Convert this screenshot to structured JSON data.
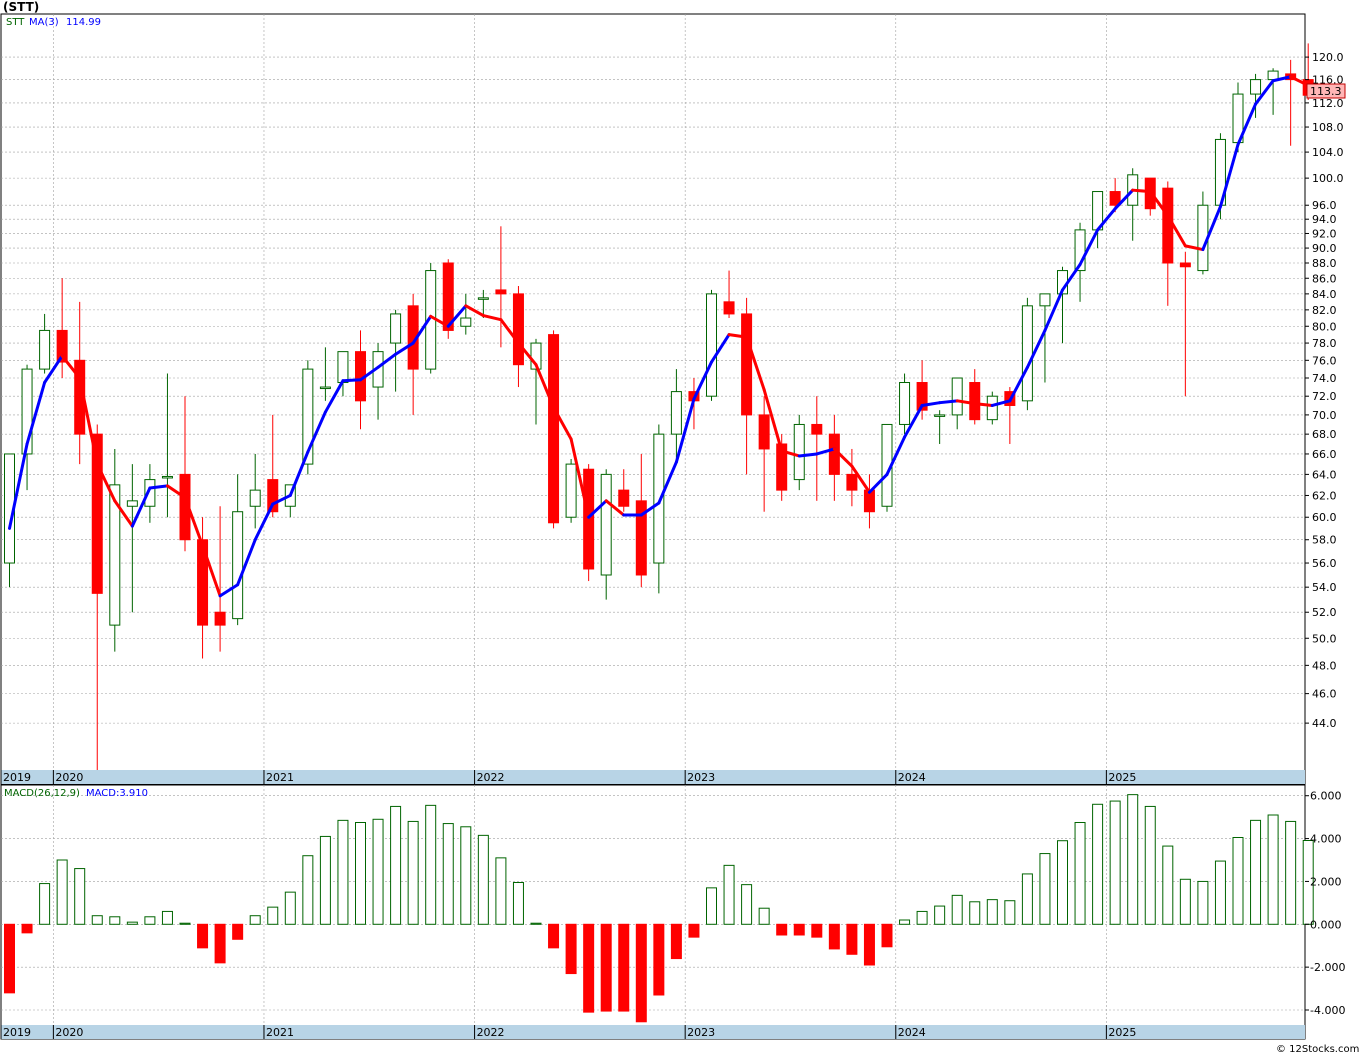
{
  "header": {
    "symbol": "(STT)",
    "price_legend_symbol": "STT",
    "ma_label": "MA(3)",
    "ma_value": "114.99",
    "macd_label": "MACD(26,12,9)",
    "macd_value_label": "MACD:3.910",
    "last_price": "113.3",
    "watermark": "© 12Stocks.com"
  },
  "colors": {
    "up": "#006400",
    "down": "#ff0000",
    "ma_up": "#0000ff",
    "ma_down": "#ff0000",
    "year_band": "#b8d4e6",
    "grid": "#a0a0a0",
    "last_price_bg": "#ffb6b6"
  },
  "chart_data": [
    {
      "type": "candlestick",
      "name": "price",
      "ylim": [
        41.0,
        125.0
      ],
      "scale": "log",
      "grid": true,
      "yticks": [
        "44.0",
        "46.0",
        "48.0",
        "50.0",
        "52.0",
        "54.0",
        "56.0",
        "58.0",
        "60.0",
        "62.0",
        "64.0",
        "66.0",
        "68.0",
        "70.0",
        "72.0",
        "74.0",
        "76.0",
        "78.0",
        "80.0",
        "82.0",
        "84.0",
        "86.0",
        "88.0",
        "90.0",
        "92.0",
        "94.0",
        "96.0",
        "100.0",
        "104.0",
        "108.0",
        "112.0",
        "116.0",
        "120.0"
      ],
      "years": [
        {
          "label": "2019",
          "month_index": -0.5
        },
        {
          "label": "2020",
          "month_index": 2.5
        },
        {
          "label": "2021",
          "month_index": 14.5
        },
        {
          "label": "2022",
          "month_index": 26.5
        },
        {
          "label": "2023",
          "month_index": 38.5
        },
        {
          "label": "2024",
          "month_index": 50.5
        },
        {
          "label": "2025",
          "month_index": 62.5
        }
      ],
      "candles": [
        [
          56.0,
          66.0,
          54.0,
          66.0
        ],
        [
          66.0,
          75.5,
          62.5,
          75.0
        ],
        [
          75.0,
          81.5,
          74.5,
          79.5
        ],
        [
          79.5,
          86.0,
          74.0,
          75.8
        ],
        [
          76.0,
          83.0,
          65.0,
          68.0
        ],
        [
          68.0,
          69.0,
          41.0,
          53.5
        ],
        [
          51.0,
          66.5,
          49.0,
          63.0
        ],
        [
          61.0,
          65.0,
          52.0,
          61.5
        ],
        [
          61.0,
          65.0,
          59.5,
          63.5
        ],
        [
          63.8,
          74.5,
          60.0,
          63.8
        ],
        [
          64.0,
          72.0,
          57.0,
          58.0
        ],
        [
          58.0,
          60.0,
          48.5,
          51.0
        ],
        [
          52.0,
          61.0,
          49.0,
          51.0
        ],
        [
          51.5,
          64.0,
          51.0,
          60.5
        ],
        [
          61.0,
          66.0,
          59.0,
          62.5
        ],
        [
          63.5,
          70.0,
          60.0,
          60.5
        ],
        [
          61.0,
          63.0,
          60.0,
          63.0
        ],
        [
          65.0,
          76.0,
          64.0,
          75.0
        ],
        [
          73.0,
          77.5,
          71.5,
          73.0
        ],
        [
          73.5,
          77.0,
          72.0,
          77.0
        ],
        [
          77.0,
          79.5,
          68.5,
          71.5
        ],
        [
          73.0,
          78.0,
          69.5,
          77.0
        ],
        [
          78.0,
          82.0,
          72.5,
          81.5
        ],
        [
          82.5,
          84.0,
          70.0,
          75.0
        ],
        [
          75.0,
          88.0,
          74.5,
          87.0
        ],
        [
          88.0,
          88.5,
          78.5,
          79.5
        ],
        [
          80.0,
          84.0,
          79.0,
          81.0
        ],
        [
          83.5,
          84.5,
          81.0,
          83.5
        ],
        [
          84.5,
          93.0,
          77.5,
          84.0
        ],
        [
          84.0,
          85.0,
          73.0,
          75.5
        ],
        [
          75.0,
          78.5,
          69.0,
          78.0
        ],
        [
          79.0,
          79.5,
          59.0,
          59.5
        ],
        [
          60.0,
          65.5,
          59.5,
          65.0
        ],
        [
          64.5,
          65.0,
          54.5,
          55.5
        ],
        [
          55.0,
          64.5,
          53.0,
          64.0
        ],
        [
          62.5,
          64.5,
          60.5,
          61.0
        ],
        [
          61.5,
          66.0,
          54.0,
          55.0
        ],
        [
          56.0,
          69.0,
          53.5,
          68.0
        ],
        [
          68.0,
          75.0,
          65.0,
          72.5
        ],
        [
          72.5,
          74.0,
          68.5,
          71.5
        ],
        [
          72.0,
          84.5,
          71.5,
          84.0
        ],
        [
          83.0,
          87.0,
          81.0,
          81.5
        ],
        [
          81.5,
          83.5,
          64.0,
          70.0
        ],
        [
          70.0,
          72.0,
          60.5,
          66.5
        ],
        [
          67.0,
          68.0,
          61.5,
          62.5
        ],
        [
          63.5,
          70.0,
          62.5,
          69.0
        ],
        [
          69.0,
          72.0,
          61.5,
          68.0
        ],
        [
          68.0,
          70.0,
          61.5,
          64.0
        ],
        [
          64.0,
          66.5,
          61.0,
          62.5
        ],
        [
          62.5,
          64.0,
          59.0,
          60.5
        ],
        [
          61.0,
          69.0,
          60.5,
          69.0
        ],
        [
          69.0,
          74.5,
          68.0,
          73.5
        ],
        [
          73.5,
          76.0,
          69.5,
          70.5
        ],
        [
          70.0,
          70.5,
          67.0,
          70.0
        ],
        [
          70.0,
          74.0,
          68.5,
          74.0
        ],
        [
          73.5,
          75.0,
          69.0,
          69.5
        ],
        [
          69.5,
          72.5,
          69.0,
          72.0
        ],
        [
          72.5,
          73.0,
          67.0,
          71.0
        ],
        [
          71.5,
          83.5,
          70.5,
          82.5
        ],
        [
          82.5,
          84.0,
          73.5,
          84.0
        ],
        [
          84.0,
          87.5,
          78.0,
          87.0
        ],
        [
          87.0,
          93.5,
          83.0,
          92.5
        ],
        [
          92.5,
          98.0,
          90.0,
          98.0
        ],
        [
          98.0,
          100.0,
          95.0,
          96.0
        ],
        [
          96.0,
          101.5,
          91.0,
          100.5
        ],
        [
          100.0,
          100.0,
          94.5,
          95.5
        ],
        [
          98.5,
          99.5,
          82.5,
          88.0
        ],
        [
          88.0,
          89.5,
          72.0,
          87.5
        ],
        [
          87.0,
          98.0,
          86.5,
          96.0
        ],
        [
          96.0,
          107.0,
          94.0,
          106.0
        ],
        [
          105.5,
          115.5,
          104.0,
          113.5
        ],
        [
          113.5,
          117.0,
          109.5,
          116.0
        ],
        [
          116.0,
          118.0,
          110.0,
          117.5
        ],
        [
          117.0,
          119.5,
          105.0,
          116.0
        ],
        [
          116.0,
          122.5,
          112.5,
          113.3
        ]
      ],
      "ma3": [
        59.0,
        67.0,
        73.5,
        76.5,
        74.0,
        65.0,
        61.5,
        59.2,
        62.7,
        62.9,
        61.8,
        57.5,
        53.3,
        54.2,
        58.0,
        61.2,
        62.0,
        66.2,
        70.3,
        73.7,
        73.8,
        75.2,
        76.7,
        78.0,
        81.2,
        80.0,
        82.5,
        81.3,
        80.8,
        78.0,
        75.5,
        70.8,
        67.5,
        60.0,
        61.5,
        60.2,
        60.2,
        61.3,
        65.2,
        71.7,
        75.8,
        79.0,
        78.7,
        72.7,
        66.3,
        65.8,
        66.0,
        66.5,
        64.8,
        62.3,
        64.0,
        67.7,
        71.0,
        71.3,
        71.5,
        71.2,
        71.0,
        71.5,
        75.2,
        79.5,
        84.5,
        87.8,
        92.5,
        95.5,
        98.2,
        98.0,
        94.5,
        90.3,
        89.8,
        95.8,
        105.2,
        111.8,
        115.8,
        116.5,
        115.0
      ]
    },
    {
      "type": "bar",
      "name": "macd",
      "ylim": [
        -4.7,
        6.5
      ],
      "grid": true,
      "yticks": [
        "-4.000",
        "-2.000",
        "0.000",
        "2.000",
        "4.000",
        "6.000"
      ],
      "values": [
        -3.2,
        -0.4,
        1.9,
        3.0,
        2.6,
        0.4,
        0.35,
        0.1,
        0.35,
        0.6,
        0.05,
        -1.1,
        -1.8,
        -0.7,
        0.4,
        0.8,
        1.5,
        3.2,
        4.1,
        4.85,
        4.75,
        4.9,
        5.5,
        4.8,
        5.55,
        4.7,
        4.55,
        4.15,
        3.1,
        1.95,
        0.05,
        -1.1,
        -2.3,
        -4.1,
        -4.05,
        -4.05,
        -4.55,
        -3.3,
        -1.6,
        -0.6,
        1.7,
        2.75,
        1.85,
        0.75,
        -0.5,
        -0.5,
        -0.6,
        -1.15,
        -1.4,
        -1.9,
        -1.05,
        0.2,
        0.6,
        0.85,
        1.35,
        1.05,
        1.15,
        1.1,
        2.35,
        3.3,
        3.9,
        4.75,
        5.6,
        5.75,
        6.05,
        5.5,
        3.65,
        2.1,
        2.0,
        2.95,
        4.05,
        4.85,
        5.1,
        4.8,
        3.91
      ]
    }
  ]
}
